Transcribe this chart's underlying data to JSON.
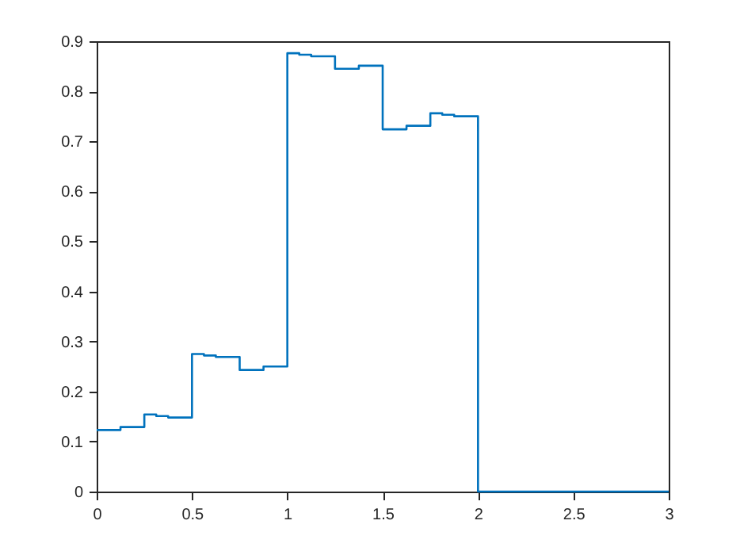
{
  "chart_data": {
    "type": "step",
    "x": [
      0,
      0.125,
      0.25,
      0.3125,
      0.375,
      0.5,
      0.5625,
      0.625,
      0.75,
      0.875,
      1,
      1.0625,
      1.125,
      1.25,
      1.375,
      1.5,
      1.625,
      1.75,
      1.8125,
      1.875,
      2,
      3
    ],
    "series": [
      {
        "color": "#0072bd",
        "values": [
          0.123,
          0.129,
          0.154,
          0.151,
          0.148,
          0.275,
          0.272,
          0.269,
          0.243,
          0.25,
          0.876,
          0.873,
          0.87,
          0.845,
          0.851,
          0.724,
          0.731,
          0.756,
          0.753,
          0.75,
          0,
          0
        ]
      }
    ],
    "xlim": [
      0,
      3
    ],
    "xticks": [
      0,
      0.5,
      1,
      1.5,
      2,
      2.5,
      3
    ],
    "ylim": [
      0,
      0.9
    ],
    "yticks": [
      0,
      0.1,
      0.2,
      0.3,
      0.4,
      0.5,
      0.6,
      0.7,
      0.8,
      0.9
    ],
    "grid": false
  }
}
